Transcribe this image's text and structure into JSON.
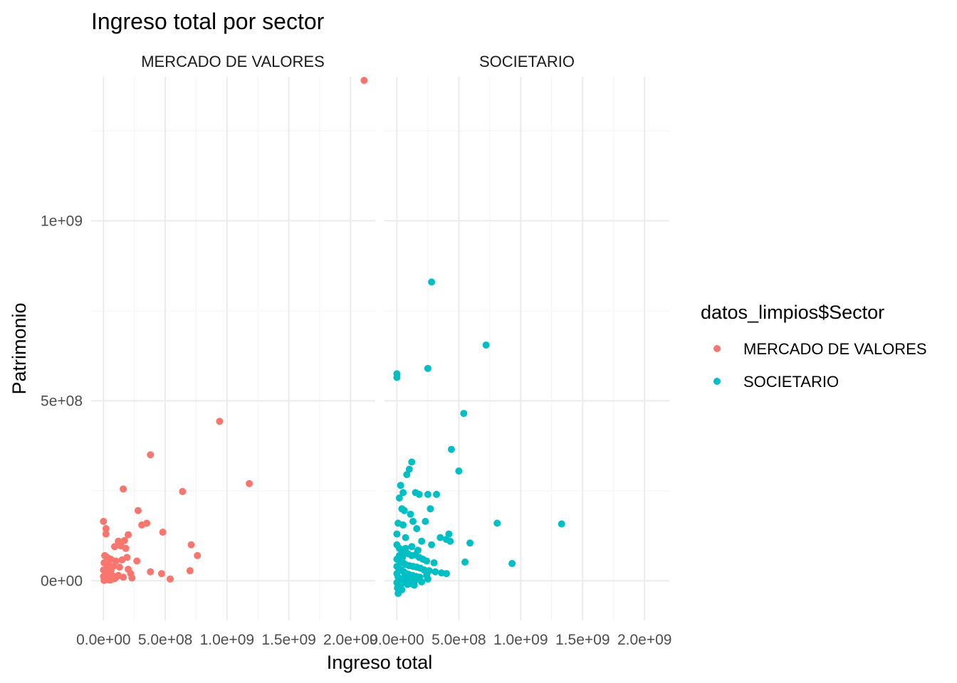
{
  "chart_data": {
    "type": "scatter",
    "title": "Ingreso total por sector",
    "xlabel": "Ingreso total",
    "ylabel": "Patrimonio",
    "facets": [
      "MERCADO DE VALORES",
      "SOCIETARIO"
    ],
    "xlim": [
      -100000000,
      2200000000
    ],
    "ylim": [
      -110000000,
      1400000000
    ],
    "x_ticks": [
      0,
      500000000,
      1000000000,
      1500000000,
      2000000000
    ],
    "x_tick_labels": [
      "0.0e+00",
      "5.0e+08",
      "1.0e+09",
      "1.5e+09",
      "2.0e+09"
    ],
    "y_ticks": [
      0,
      500000000,
      1000000000
    ],
    "y_tick_labels": [
      "0e+00",
      "5e+08",
      "1e+09"
    ],
    "grid": true,
    "legend": {
      "title": "datos_limpios$Sector",
      "placement": "right",
      "entries": [
        {
          "label": "MERCADO DE VALORES",
          "color": "#F8766D"
        },
        {
          "label": "SOCIETARIO",
          "color": "#00BFC4"
        }
      ]
    },
    "series": [
      {
        "name": "MERCADO DE VALORES",
        "facet": 0,
        "color": "#F8766D",
        "points": [
          [
            2110000000,
            1390000000
          ],
          [
            940000000,
            443000000
          ],
          [
            1180000000,
            270000000
          ],
          [
            380000000,
            350000000
          ],
          [
            160000000,
            255000000
          ],
          [
            640000000,
            248000000
          ],
          [
            280000000,
            195000000
          ],
          [
            310000000,
            155000000
          ],
          [
            350000000,
            160000000
          ],
          [
            480000000,
            135000000
          ],
          [
            0,
            165000000
          ],
          [
            20000000,
            145000000
          ],
          [
            20000000,
            130000000
          ],
          [
            200000000,
            128000000
          ],
          [
            120000000,
            110000000
          ],
          [
            170000000,
            112000000
          ],
          [
            90000000,
            95000000
          ],
          [
            140000000,
            97000000
          ],
          [
            180000000,
            90000000
          ],
          [
            710000000,
            100000000
          ],
          [
            760000000,
            70000000
          ],
          [
            10000000,
            70000000
          ],
          [
            30000000,
            65000000
          ],
          [
            60000000,
            60000000
          ],
          [
            100000000,
            55000000
          ],
          [
            150000000,
            58000000
          ],
          [
            190000000,
            65000000
          ],
          [
            270000000,
            55000000
          ],
          [
            5000000,
            50000000
          ],
          [
            40000000,
            45000000
          ],
          [
            80000000,
            40000000
          ],
          [
            130000000,
            38000000
          ],
          [
            200000000,
            32000000
          ],
          [
            220000000,
            20000000
          ],
          [
            380000000,
            25000000
          ],
          [
            470000000,
            20000000
          ],
          [
            700000000,
            28000000
          ],
          [
            0,
            30000000
          ],
          [
            15000000,
            25000000
          ],
          [
            50000000,
            20000000
          ],
          [
            70000000,
            15000000
          ],
          [
            110000000,
            12000000
          ],
          [
            160000000,
            10000000
          ],
          [
            230000000,
            8000000
          ],
          [
            540000000,
            5000000
          ],
          [
            0,
            12000000
          ],
          [
            10000000,
            8000000
          ],
          [
            25000000,
            5000000
          ],
          [
            40000000,
            3000000
          ],
          [
            55000000,
            2000000
          ],
          [
            5000000,
            1000000
          ],
          [
            90000000,
            6000000
          ],
          [
            120000000,
            15000000
          ],
          [
            30000000,
            35000000
          ],
          [
            60000000,
            28000000
          ]
        ]
      },
      {
        "name": "SOCIETARIO",
        "facet": 1,
        "color": "#00BFC4",
        "points": [
          [
            280000000,
            830000000
          ],
          [
            720000000,
            655000000
          ],
          [
            250000000,
            590000000
          ],
          [
            0,
            575000000
          ],
          [
            0,
            565000000
          ],
          [
            540000000,
            465000000
          ],
          [
            440000000,
            365000000
          ],
          [
            500000000,
            305000000
          ],
          [
            120000000,
            330000000
          ],
          [
            100000000,
            310000000
          ],
          [
            80000000,
            295000000
          ],
          [
            30000000,
            265000000
          ],
          [
            50000000,
            245000000
          ],
          [
            150000000,
            245000000
          ],
          [
            180000000,
            240000000
          ],
          [
            250000000,
            240000000
          ],
          [
            320000000,
            240000000
          ],
          [
            20000000,
            230000000
          ],
          [
            270000000,
            200000000
          ],
          [
            40000000,
            200000000
          ],
          [
            60000000,
            195000000
          ],
          [
            110000000,
            185000000
          ],
          [
            810000000,
            160000000
          ],
          [
            1330000000,
            158000000
          ],
          [
            130000000,
            165000000
          ],
          [
            230000000,
            165000000
          ],
          [
            10000000,
            160000000
          ],
          [
            50000000,
            155000000
          ],
          [
            160000000,
            145000000
          ],
          [
            420000000,
            130000000
          ],
          [
            350000000,
            120000000
          ],
          [
            400000000,
            115000000
          ],
          [
            430000000,
            110000000
          ],
          [
            590000000,
            105000000
          ],
          [
            0,
            130000000
          ],
          [
            70000000,
            120000000
          ],
          [
            200000000,
            110000000
          ],
          [
            280000000,
            100000000
          ],
          [
            930000000,
            48000000
          ],
          [
            550000000,
            52000000
          ],
          [
            0,
            100000000
          ],
          [
            20000000,
            90000000
          ],
          [
            40000000,
            85000000
          ],
          [
            60000000,
            80000000
          ],
          [
            90000000,
            75000000
          ],
          [
            120000000,
            70000000
          ],
          [
            150000000,
            72000000
          ],
          [
            180000000,
            65000000
          ],
          [
            210000000,
            60000000
          ],
          [
            240000000,
            55000000
          ],
          [
            300000000,
            50000000
          ],
          [
            10000000,
            60000000
          ],
          [
            30000000,
            55000000
          ],
          [
            50000000,
            50000000
          ],
          [
            70000000,
            45000000
          ],
          [
            100000000,
            42000000
          ],
          [
            130000000,
            40000000
          ],
          [
            160000000,
            38000000
          ],
          [
            190000000,
            35000000
          ],
          [
            220000000,
            30000000
          ],
          [
            260000000,
            28000000
          ],
          [
            310000000,
            25000000
          ],
          [
            360000000,
            22000000
          ],
          [
            400000000,
            20000000
          ],
          [
            0,
            40000000
          ],
          [
            15000000,
            35000000
          ],
          [
            35000000,
            30000000
          ],
          [
            55000000,
            25000000
          ],
          [
            75000000,
            20000000
          ],
          [
            95000000,
            18000000
          ],
          [
            125000000,
            15000000
          ],
          [
            155000000,
            12000000
          ],
          [
            185000000,
            10000000
          ],
          [
            250000000,
            5000000
          ],
          [
            0,
            20000000
          ],
          [
            10000000,
            10000000
          ],
          [
            25000000,
            5000000
          ],
          [
            45000000,
            0
          ],
          [
            65000000,
            -5000000
          ],
          [
            85000000,
            -10000000
          ],
          [
            110000000,
            -8000000
          ],
          [
            140000000,
            -12000000
          ],
          [
            0,
            -5000000
          ],
          [
            5000000,
            -20000000
          ],
          [
            20000000,
            -15000000
          ],
          [
            40000000,
            -25000000
          ],
          [
            10000000,
            -35000000
          ],
          [
            30000000,
            -10000000
          ],
          [
            60000000,
            10000000
          ],
          [
            80000000,
            5000000
          ],
          [
            100000000,
            0
          ],
          [
            150000000,
            2000000
          ],
          [
            200000000,
            -3000000
          ],
          [
            240000000,
            15000000
          ],
          [
            0,
            60000000
          ],
          [
            20000000,
            70000000
          ],
          [
            45000000,
            65000000
          ],
          [
            70000000,
            90000000
          ],
          [
            120000000,
            95000000
          ],
          [
            170000000,
            85000000
          ]
        ]
      }
    ]
  }
}
